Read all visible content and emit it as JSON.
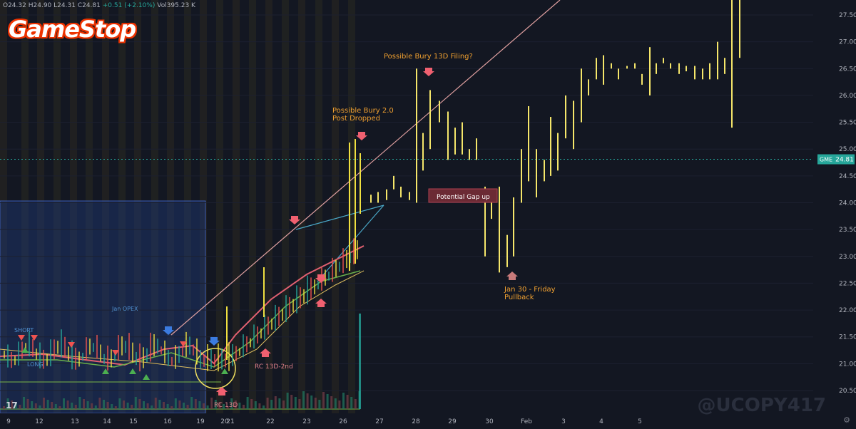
{
  "header": {
    "ohlc_open": "O24.32",
    "ohlc_high": "H24.90",
    "ohlc_low": "L24.31",
    "ohlc_close": "C24.81",
    "ohlc_change": "+0.51 (+2.10%)",
    "volume": "Vol395.23 K",
    "symbol_box": "24.81"
  },
  "logo_text": "GameStop",
  "watermark": "@UCOPY417",
  "tv_logo": "17",
  "settings_icon": "gear-icon",
  "chart_data": {
    "type": "bar",
    "ylim": [
      20.25,
      27.9
    ],
    "y_ticks": [
      "27.50",
      "27.00",
      "26.50",
      "26.00",
      "25.50",
      "25.00",
      "24.50",
      "24.00",
      "23.50",
      "23.00",
      "22.50",
      "22.00",
      "21.50",
      "21.00",
      "20.50"
    ],
    "x_ticks": [
      "9",
      "12",
      "13",
      "14",
      "15",
      "16",
      "19",
      "20",
      "21",
      "22",
      "23",
      "26",
      "27",
      "28",
      "29",
      "30",
      "Feb",
      "3",
      "4",
      "5"
    ],
    "last_price": {
      "label": "GME",
      "value": "24.81"
    },
    "annotations": [
      {
        "text": "Possible Bury 13D Filing?",
        "color": "#f0a030"
      },
      {
        "text": "Possible Bury 2.0",
        "color": "#f0a030"
      },
      {
        "text": "Post Dropped",
        "color": "#f0a030"
      },
      {
        "text": "Potential Gap up",
        "color": "#ffffff"
      },
      {
        "text": "Jan 30 - Friday",
        "color": "#f0a030"
      },
      {
        "text": "Pullback",
        "color": "#f0a030"
      },
      {
        "text": "RC 13D-2nd",
        "color": "#e0808a"
      },
      {
        "text": "RC 13D",
        "color": "#e0808a"
      },
      {
        "text": "Jan OPEX",
        "color": "#5090d0"
      },
      {
        "text": "SHORT",
        "color": "#5090d0"
      },
      {
        "text": "LONG",
        "color": "#5090d0"
      }
    ],
    "projection_bars": [
      {
        "x": "Jan 27",
        "high": 24.2,
        "low": 24.0
      },
      {
        "x": "Jan 28",
        "high": 26.5,
        "low": 24.0
      },
      {
        "x": "Jan 28",
        "high": 25.3,
        "low": 24.6
      },
      {
        "x": "Jan 28",
        "high": 26.1,
        "low": 25.0
      },
      {
        "x": "Jan 29",
        "high": 25.7,
        "low": 24.8
      },
      {
        "x": "Jan 30",
        "high": 24.3,
        "low": 23.0
      },
      {
        "x": "Jan 30",
        "high": 23.4,
        "low": 22.8
      },
      {
        "x": "Feb 2",
        "high": 25.8,
        "low": 24.4
      },
      {
        "x": "Feb 3",
        "high": 26.0,
        "low": 25.2
      },
      {
        "x": "Feb 4",
        "high": 26.75,
        "low": 26.2
      },
      {
        "x": "Feb 5",
        "high": 26.9,
        "low": 26.0
      },
      {
        "x": "Feb 6",
        "high": 27.9,
        "low": 25.4
      }
    ]
  }
}
